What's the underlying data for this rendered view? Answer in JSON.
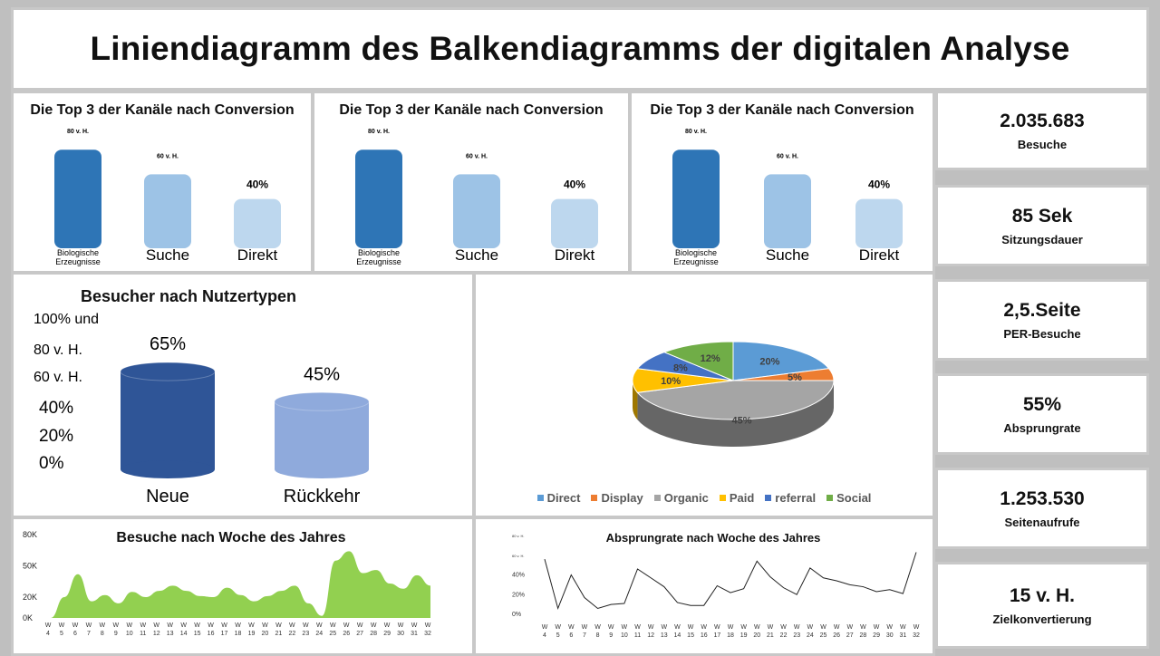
{
  "header": {
    "title": "Liniendiagramm des Balkendiagramms der digitalen Analyse"
  },
  "colors": {
    "dark_blue": "#2e75b6",
    "mid_blue": "#9dc3e6",
    "light_blue": "#bdd7ee",
    "navy": "#2f5597",
    "periwinkle": "#8faadc",
    "green": "#92d050"
  },
  "channel_charts": [
    {
      "title": "Die Top 3 der Kanäle nach Conversion"
    },
    {
      "title": "Die Top 3 der Kanäle nach Conversion"
    },
    {
      "title": "Die Top 3 der Kanäle nach Conversion"
    }
  ],
  "kpis": [
    {
      "value": "2.035.683",
      "label": "Besuche"
    },
    {
      "value": "85 Sek",
      "label": "Sitzungsdauer"
    },
    {
      "value": "2,5.Seite",
      "label": "PER-Besuche"
    },
    {
      "value": "55%",
      "label": "Absprungrate"
    },
    {
      "value": "1.253.530",
      "label": "Seitenaufrufe"
    },
    {
      "value": "15 v. H.",
      "label": "Zielkonvertierung"
    }
  ],
  "chart_data": [
    {
      "type": "bar",
      "title": "Die Top 3 der Kanäle nach Conversion",
      "categories": [
        "Biologische Erzeugnisse",
        "Suche",
        "Direkt"
      ],
      "values": [
        80,
        60,
        40
      ],
      "data_labels": [
        "80 v. H.",
        "60 v. H.",
        "40%"
      ],
      "ylim": [
        0,
        100
      ]
    },
    {
      "type": "bar",
      "title": "Die Top 3 der Kanäle nach Conversion",
      "categories": [
        "Biologische Erzeugnisse",
        "Suche",
        "Direkt"
      ],
      "values": [
        80,
        60,
        40
      ],
      "data_labels": [
        "80 v. H.",
        "60 v. H.",
        "40%"
      ],
      "ylim": [
        0,
        100
      ]
    },
    {
      "type": "bar",
      "title": "Die Top 3 der Kanäle nach Conversion",
      "categories": [
        "Biologische Erzeugnisse",
        "Suche",
        "Direkt"
      ],
      "values": [
        80,
        60,
        40
      ],
      "data_labels": [
        "80 v. H.",
        "60 v. H.",
        "40%"
      ],
      "ylim": [
        0,
        100
      ]
    },
    {
      "type": "bar",
      "title": "Besucher nach Nutzertypen",
      "categories": [
        "Neue",
        "Rückkehr"
      ],
      "values": [
        65,
        45
      ],
      "data_labels": [
        "65%",
        "45%"
      ],
      "yticks": [
        "100% und",
        "80 v. H.",
        "60 v. H.",
        "40%",
        "20%",
        "0%"
      ],
      "ylim": [
        0,
        100
      ]
    },
    {
      "type": "pie",
      "title": "",
      "labels": [
        "Direct",
        "Display",
        "Organic",
        "Paid",
        "referral",
        "Social"
      ],
      "values": [
        20,
        5,
        45,
        10,
        8,
        12
      ],
      "data_labels": [
        "20%",
        "5%",
        "45%",
        "10%",
        "8%",
        "12%"
      ],
      "colors": [
        "#5b9bd5",
        "#ed7d31",
        "#a5a5a5",
        "#ffc000",
        "#4472c4",
        "#70ad47"
      ],
      "legend": "bottom"
    },
    {
      "type": "area",
      "title": "Besuche nach Woche des Jahres",
      "x": [
        "W 4",
        "W 5",
        "W 6",
        "W 7",
        "W 8",
        "W 9",
        "W 10",
        "W 11",
        "W 12",
        "W 13",
        "W 14",
        "W 15",
        "W 16",
        "W 17",
        "W 18",
        "W 19",
        "W 20",
        "W 21",
        "W 22",
        "W 23",
        "W 24",
        "W 25",
        "W 26",
        "W 27",
        "W 28",
        "W 29",
        "W 30",
        "W 31",
        "W 32"
      ],
      "values": [
        0,
        20,
        42,
        16,
        22,
        14,
        25,
        20,
        26,
        31,
        26,
        21,
        20,
        29,
        22,
        16,
        21,
        26,
        31,
        14,
        2,
        55,
        64,
        43,
        46,
        33,
        28,
        41,
        31
      ],
      "yticks": [
        "0K",
        "20K",
        "50K",
        "80K"
      ],
      "ylim": [
        0,
        80
      ]
    },
    {
      "type": "line",
      "title": "Absprungrate nach Woche des Jahres",
      "x": [
        "W 4",
        "W 5",
        "W 6",
        "W 7",
        "W 8",
        "W 9",
        "W 10",
        "W 11",
        "W 12",
        "W 13",
        "W 14",
        "W 15",
        "W 16",
        "W 17",
        "W 18",
        "W 19",
        "W 20",
        "W 21",
        "W 22",
        "W 23",
        "W 24",
        "W 25",
        "W 26",
        "W 27",
        "W 28",
        "W 29",
        "W 30",
        "W 31",
        "W 32"
      ],
      "values": [
        56,
        6,
        40,
        17,
        6,
        10,
        11,
        46,
        37,
        28,
        12,
        9,
        9,
        29,
        22,
        26,
        54,
        38,
        27,
        20,
        47,
        37,
        34,
        30,
        28,
        23,
        25,
        21,
        63
      ],
      "yticks": [
        "0%",
        "20%",
        "40%",
        "60 v. H.",
        "80 v. H."
      ],
      "ylim": [
        0,
        80
      ]
    }
  ]
}
